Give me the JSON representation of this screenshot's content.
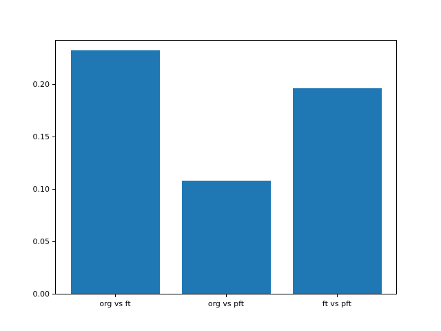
{
  "chart_data": {
    "type": "bar",
    "title": "",
    "xlabel": "",
    "ylabel": "",
    "categories": [
      "org vs ft",
      "org vs pft",
      "ft vs pft"
    ],
    "values": [
      0.232,
      0.108,
      0.196
    ],
    "ylim": [
      0,
      0.2428
    ],
    "xlim": [
      -0.54,
      2.54
    ],
    "yticks": [
      0.0,
      0.05,
      0.1,
      0.15,
      0.2
    ],
    "ytick_labels": [
      "0.00",
      "0.05",
      "0.10",
      "0.15",
      "0.20"
    ],
    "bar_width": 0.8,
    "bar_color": "#1f77b4",
    "axis_color": "#000000",
    "text_color": "#000000",
    "background_color": "#ffffff",
    "grid": false,
    "legend": null
  }
}
